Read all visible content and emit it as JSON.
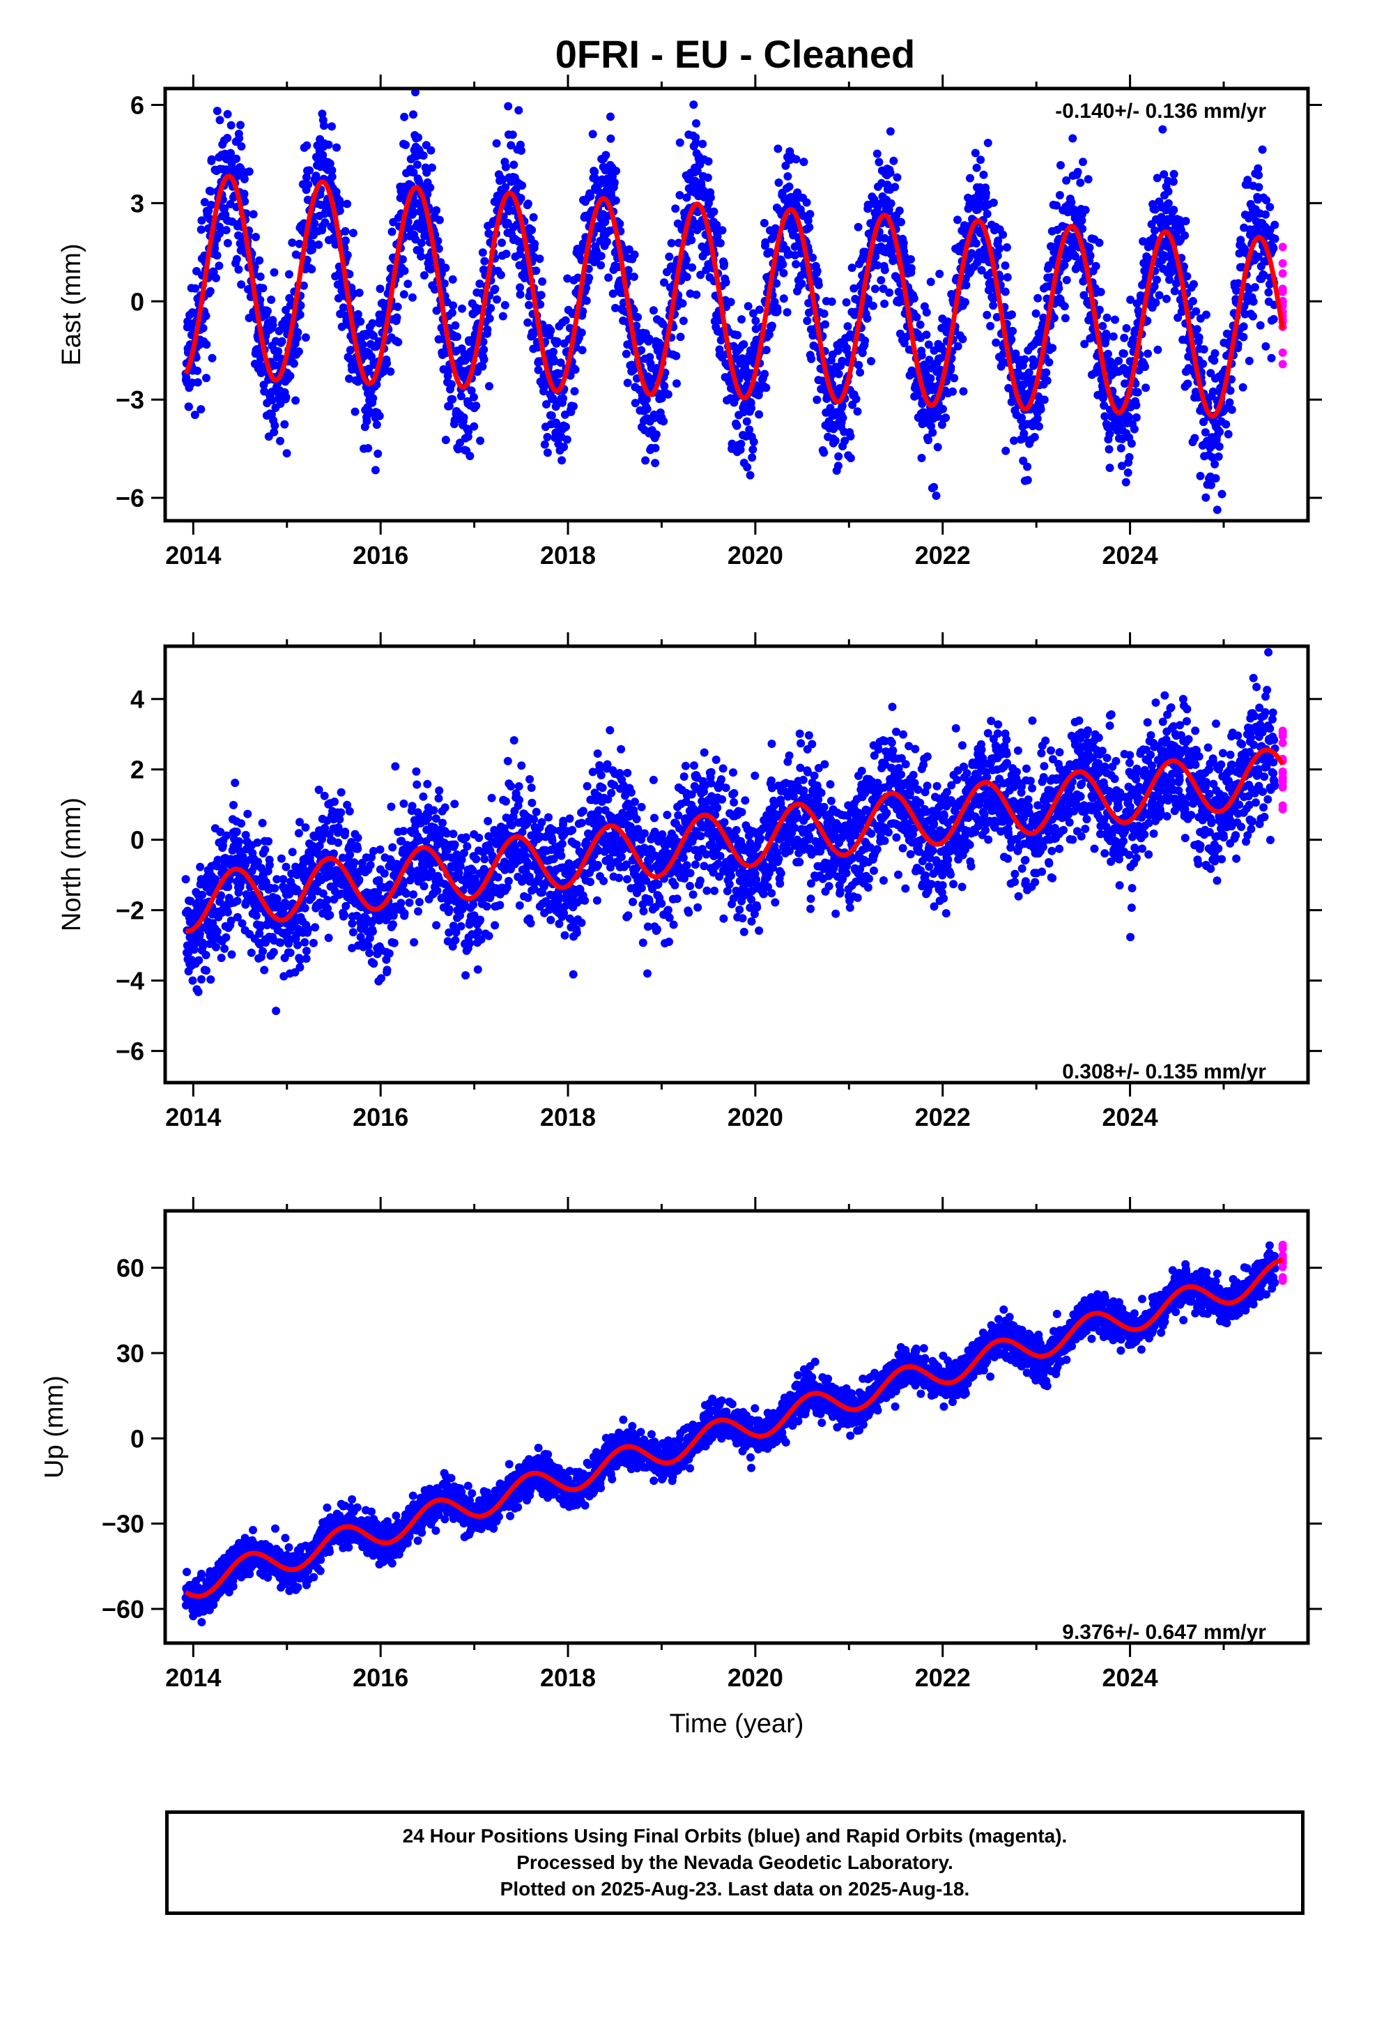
{
  "figure": {
    "title": "0FRI  - EU - Cleaned",
    "footer": [
      "24 Hour Positions Using Final Orbits (blue) and Rapid Orbits (magenta).",
      "Processed by the Nevada Geodetic Laboratory.",
      "Plotted on 2025-Aug-23. Last data on 2025-Aug-18."
    ],
    "colors": {
      "final": "#0000ff",
      "rapid": "#ff00ff",
      "model": "#ff0000",
      "axes": "#000000"
    }
  },
  "chart_data": [
    {
      "type": "scatter",
      "ylabel": "East (mm)",
      "xlabel": "",
      "xlim": [
        2013.7,
        2025.9
      ],
      "ylim": [
        -6.7,
        6.5
      ],
      "xticks": [
        2014,
        2016,
        2018,
        2020,
        2022,
        2024
      ],
      "yticks": [
        -6,
        -3,
        0,
        3,
        6
      ],
      "annotation": "-0.140+/- 0.136 mm/yr",
      "rate_mm_per_yr": -0.14,
      "model": {
        "offset": 0.8,
        "amplitude": 3.1,
        "amplitude_trend": -0.03,
        "peak_phase": 0.38,
        "noise_sd": 1.1
      },
      "data_start": 2013.92,
      "final_end": 2025.55,
      "last_data": 2025.63,
      "grid": false,
      "legend": "none"
    },
    {
      "type": "scatter",
      "ylabel": "North (mm)",
      "xlabel": "",
      "xlim": [
        2013.7,
        2025.9
      ],
      "ylim": [
        -6.9,
        5.5
      ],
      "xticks": [
        2014,
        2016,
        2018,
        2020,
        2022,
        2024
      ],
      "yticks": [
        -6,
        -4,
        -2,
        0,
        2,
        4
      ],
      "annotation": "0.308+/- 0.135 mm/yr",
      "rate_mm_per_yr": 0.308,
      "model": {
        "offset": -1.8,
        "amplitude": 0.8,
        "amplitude_trend": 0.0,
        "peak_phase": 0.45,
        "noise_sd": 0.9
      },
      "data_start": 2013.92,
      "final_end": 2025.55,
      "last_data": 2025.63,
      "grid": false,
      "legend": "none"
    },
    {
      "type": "scatter",
      "ylabel": "Up (mm)",
      "xlabel": "Time (year)",
      "xlim": [
        2013.7,
        2025.9
      ],
      "ylim": [
        -72,
        80
      ],
      "xticks": [
        2014,
        2016,
        2018,
        2020,
        2022,
        2024
      ],
      "yticks": [
        -60,
        -30,
        0,
        30,
        60
      ],
      "annotation": "9.376+/- 0.647 mm/yr",
      "rate_mm_per_yr": 9.376,
      "model": {
        "offset": -52,
        "amplitude": 5.0,
        "amplitude_trend": 0.0,
        "peak_phase": 0.6,
        "noise_sd": 3.5
      },
      "data_start": 2013.92,
      "final_end": 2025.55,
      "last_data": 2025.63,
      "grid": false,
      "legend": "none"
    }
  ]
}
